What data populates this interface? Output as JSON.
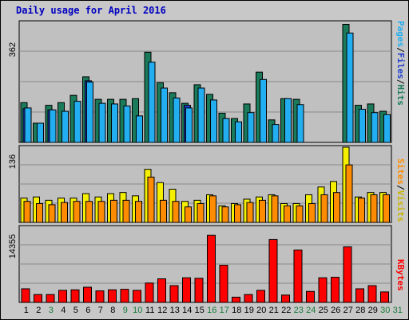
{
  "title": "Daily usage for April 2016",
  "chart_data": [
    {
      "type": "bar",
      "panel": "pages-files-hits",
      "ymax_label": "362",
      "ylim": [
        0,
        362
      ],
      "categories": [
        "1",
        "2",
        "3",
        "4",
        "5",
        "6",
        "7",
        "8",
        "9",
        "10",
        "11",
        "12",
        "13",
        "14",
        "15",
        "16",
        "17",
        "18",
        "19",
        "20",
        "21",
        "22",
        "23",
        "24",
        "25",
        "26",
        "27",
        "28",
        "29",
        "30",
        "31"
      ],
      "legend": {
        "pages": "Pages",
        "files": "Files",
        "hits": "Hits",
        "sep": "/"
      },
      "series": [
        {
          "name": "Hits",
          "color": "#1a7a5a",
          "values": [
            120,
            58,
            112,
            120,
            142,
            198,
            130,
            130,
            130,
            132,
            272,
            180,
            150,
            118,
            174,
            145,
            88,
            72,
            116,
            212,
            68,
            132,
            130,
            0,
            0,
            0,
            356,
            112,
            116,
            94,
            0
          ]
        },
        {
          "name": "Files",
          "color": "#1c3ccc",
          "values": [
            102,
            0,
            98,
            0,
            0,
            186,
            0,
            0,
            0,
            0,
            0,
            0,
            0,
            112,
            0,
            0,
            0,
            0,
            0,
            0,
            0,
            0,
            0,
            0,
            0,
            0,
            0,
            0,
            0,
            0,
            0
          ]
        },
        {
          "name": "Pages",
          "color": "#22aef0",
          "values": [
            104,
            58,
            98,
            94,
            124,
            182,
            118,
            116,
            110,
            80,
            242,
            164,
            134,
            104,
            164,
            128,
            72,
            62,
            90,
            190,
            54,
            132,
            114,
            0,
            0,
            0,
            330,
            100,
            90,
            84,
            0
          ]
        }
      ]
    },
    {
      "type": "bar",
      "panel": "sites-visits",
      "ymax_label": "136",
      "ylim": [
        0,
        136
      ],
      "categories": [
        "1",
        "2",
        "3",
        "4",
        "5",
        "6",
        "7",
        "8",
        "9",
        "10",
        "11",
        "12",
        "13",
        "14",
        "15",
        "16",
        "17",
        "18",
        "19",
        "20",
        "21",
        "22",
        "23",
        "24",
        "25",
        "26",
        "27",
        "28",
        "29",
        "30",
        "31"
      ],
      "legend": {
        "sites": "Sites",
        "visits": "Visits",
        "sep": "/"
      },
      "series": [
        {
          "name": "Visits",
          "color": "#f5f000",
          "values": [
            44,
            46,
            40,
            44,
            44,
            52,
            46,
            52,
            54,
            48,
            96,
            72,
            60,
            38,
            40,
            50,
            30,
            34,
            42,
            46,
            50,
            34,
            34,
            50,
            64,
            74,
            136,
            46,
            54,
            54,
            0
          ]
        },
        {
          "name": "Sites",
          "color": "#ff8c00",
          "values": [
            38,
            34,
            32,
            36,
            38,
            38,
            38,
            40,
            40,
            38,
            82,
            40,
            38,
            28,
            34,
            48,
            28,
            32,
            36,
            40,
            48,
            30,
            30,
            34,
            50,
            54,
            104,
            44,
            50,
            50,
            0
          ]
        }
      ]
    },
    {
      "type": "bar",
      "panel": "kbytes",
      "ymax_label": "14355",
      "ylim": [
        0,
        14355
      ],
      "categories": [
        "1",
        "2",
        "3",
        "4",
        "5",
        "6",
        "7",
        "8",
        "9",
        "10",
        "11",
        "12",
        "13",
        "14",
        "15",
        "16",
        "17",
        "18",
        "19",
        "20",
        "21",
        "22",
        "23",
        "24",
        "25",
        "26",
        "27",
        "28",
        "29",
        "30",
        "31"
      ],
      "legend": {
        "kbytes": "KBytes"
      },
      "series": [
        {
          "name": "KBytes",
          "color": "#ff0000",
          "values": [
            2600,
            1500,
            1500,
            2300,
            2400,
            2900,
            2200,
            2400,
            2500,
            2300,
            3700,
            4500,
            3200,
            4700,
            4600,
            12800,
            7100,
            1000,
            1500,
            2300,
            12000,
            1400,
            10000,
            2100,
            4700,
            4800,
            10600,
            2600,
            3200,
            2000,
            0
          ]
        }
      ]
    }
  ],
  "x_labels": [
    {
      "text": "1",
      "color": "#000000"
    },
    {
      "text": "2",
      "color": "#000000"
    },
    {
      "text": "3",
      "color": "#1a7a3a"
    },
    {
      "text": "4",
      "color": "#000000"
    },
    {
      "text": "5",
      "color": "#000000"
    },
    {
      "text": "6",
      "color": "#000000"
    },
    {
      "text": "7",
      "color": "#000000"
    },
    {
      "text": "8",
      "color": "#000000"
    },
    {
      "text": "9",
      "color": "#1a7a3a"
    },
    {
      "text": "10",
      "color": "#1a7a3a"
    },
    {
      "text": "11",
      "color": "#000000"
    },
    {
      "text": "12",
      "color": "#000000"
    },
    {
      "text": "13",
      "color": "#000000"
    },
    {
      "text": "14",
      "color": "#000000"
    },
    {
      "text": "15",
      "color": "#000000"
    },
    {
      "text": "16",
      "color": "#1a7a3a"
    },
    {
      "text": "17",
      "color": "#1a7a3a"
    },
    {
      "text": "18",
      "color": "#000000"
    },
    {
      "text": "19",
      "color": "#000000"
    },
    {
      "text": "20",
      "color": "#000000"
    },
    {
      "text": "21",
      "color": "#000000"
    },
    {
      "text": "22",
      "color": "#000000"
    },
    {
      "text": "23",
      "color": "#1a7a3a"
    },
    {
      "text": "24",
      "color": "#1a7a3a"
    },
    {
      "text": "25",
      "color": "#000000"
    },
    {
      "text": "26",
      "color": "#000000"
    },
    {
      "text": "27",
      "color": "#000000"
    },
    {
      "text": "28",
      "color": "#000000"
    },
    {
      "text": "29",
      "color": "#000000"
    },
    {
      "text": "30",
      "color": "#1a7a3a"
    },
    {
      "text": "31",
      "color": "#1a7a3a"
    }
  ],
  "colors": {
    "hits": "#1a7a5a",
    "files": "#1c3ccc",
    "pages": "#22aef0",
    "visits": "#f5f000",
    "sites": "#ff8c00",
    "kbytes": "#ff0000",
    "title": "#0000c0",
    "weekend": "#1a7a3a"
  },
  "grid": true
}
